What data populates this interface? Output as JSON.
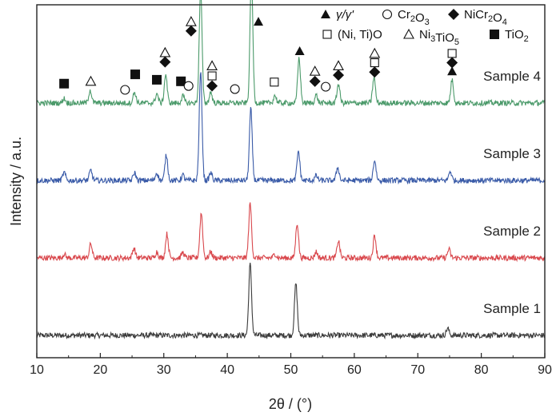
{
  "chart_data": {
    "type": "line",
    "xlabel": "2θ / (°)",
    "ylabel": "Intensity / a.u.",
    "xlim": [
      10,
      90
    ],
    "xticks": [
      "10",
      "20",
      "30",
      "40",
      "50",
      "60",
      "70",
      "80",
      "90"
    ],
    "grid": false,
    "legend": {
      "placement": "top-right",
      "entries": [
        {
          "id": "gamma",
          "marker": "filled-triangle",
          "label": "γ/γ'"
        },
        {
          "id": "cr2o3",
          "marker": "open-circle",
          "label": "Cr2O3"
        },
        {
          "id": "nicr2o4",
          "marker": "filled-diamond",
          "label": "NiCr2O4"
        },
        {
          "id": "nitio",
          "marker": "open-square",
          "label": "(Ni, Ti)O"
        },
        {
          "id": "ni3tio5",
          "marker": "open-triangle",
          "label": "Ni3TiO5"
        },
        {
          "id": "tio2",
          "marker": "filled-square",
          "label": "TiO2"
        }
      ]
    },
    "series": [
      {
        "name": "Sample 1",
        "color": "#3b3b3b",
        "baseline": 0.0,
        "peaks": [
          [
            43.6,
            0.92
          ],
          [
            50.8,
            0.67
          ],
          [
            74.7,
            0.09
          ]
        ]
      },
      {
        "name": "Sample 2",
        "color": "#d9484d",
        "baseline": 1.0,
        "peaks": [
          [
            14.3,
            0.05
          ],
          [
            18.5,
            0.18
          ],
          [
            25.3,
            0.13
          ],
          [
            28.9,
            0.08
          ],
          [
            30.5,
            0.31
          ],
          [
            33.0,
            0.07
          ],
          [
            35.9,
            0.58
          ],
          [
            37.4,
            0.08
          ],
          [
            43.6,
            0.7
          ],
          [
            47.5,
            0.05
          ],
          [
            51.0,
            0.45
          ],
          [
            54.0,
            0.08
          ],
          [
            57.5,
            0.22
          ],
          [
            63.2,
            0.29
          ],
          [
            74.9,
            0.11
          ]
        ]
      },
      {
        "name": "Sample 3",
        "color": "#3a5ba8",
        "baseline": 2.0,
        "peaks": [
          [
            14.3,
            0.1
          ],
          [
            18.5,
            0.13
          ],
          [
            25.4,
            0.1
          ],
          [
            28.9,
            0.1
          ],
          [
            30.4,
            0.33
          ],
          [
            33.0,
            0.07
          ],
          [
            35.8,
            1.4
          ],
          [
            37.4,
            0.1
          ],
          [
            43.7,
            0.92
          ],
          [
            51.2,
            0.38
          ],
          [
            54.0,
            0.06
          ],
          [
            57.4,
            0.17
          ],
          [
            63.2,
            0.26
          ],
          [
            75.1,
            0.12
          ]
        ]
      },
      {
        "name": "Sample 4",
        "color": "#4b9a6a",
        "baseline": 3.0,
        "peaks": [
          [
            14.3,
            0.06
          ],
          [
            18.4,
            0.17
          ],
          [
            25.4,
            0.14
          ],
          [
            28.9,
            0.12
          ],
          [
            30.3,
            0.37
          ],
          [
            33.0,
            0.09
          ],
          [
            35.8,
            1.47
          ],
          [
            37.4,
            0.14
          ],
          [
            43.8,
            1.65
          ],
          [
            47.5,
            0.1
          ],
          [
            51.3,
            0.58
          ],
          [
            54.0,
            0.1
          ],
          [
            57.5,
            0.25
          ],
          [
            63.1,
            0.33
          ],
          [
            75.4,
            0.3
          ]
        ]
      }
    ],
    "annotations": [
      {
        "marker": "filled-square",
        "x": 14.3,
        "y": 3.25
      },
      {
        "marker": "open-triangle",
        "x": 18.5,
        "y": 3.28
      },
      {
        "marker": "open-circle",
        "x": 23.9,
        "y": 3.17
      },
      {
        "marker": "filled-square",
        "x": 25.5,
        "y": 3.37
      },
      {
        "marker": "filled-square",
        "x": 28.9,
        "y": 3.3
      },
      {
        "marker": "filled-square",
        "x": 32.7,
        "y": 3.28
      },
      {
        "marker": "open-circle",
        "x": 33.9,
        "y": 3.22
      },
      {
        "marker": "open-triangle",
        "x": 30.2,
        "y": 3.65
      },
      {
        "marker": "filled-diamond",
        "x": 30.2,
        "y": 3.53
      },
      {
        "marker": "open-triangle",
        "x": 34.3,
        "y": 4.05
      },
      {
        "marker": "filled-diamond",
        "x": 34.3,
        "y": 3.93
      },
      {
        "marker": "open-triangle",
        "x": 37.6,
        "y": 3.48
      },
      {
        "marker": "open-square",
        "x": 37.6,
        "y": 3.35
      },
      {
        "marker": "filled-diamond",
        "x": 37.6,
        "y": 3.22
      },
      {
        "marker": "open-circle",
        "x": 41.2,
        "y": 3.18
      },
      {
        "marker": "filled-triangle",
        "x": 44.9,
        "y": 4.05
      },
      {
        "marker": "open-square",
        "x": 47.4,
        "y": 3.27
      },
      {
        "marker": "filled-triangle",
        "x": 51.4,
        "y": 3.67
      },
      {
        "marker": "open-triangle",
        "x": 53.8,
        "y": 3.41
      },
      {
        "marker": "filled-diamond",
        "x": 53.8,
        "y": 3.28
      },
      {
        "marker": "open-circle",
        "x": 55.5,
        "y": 3.21
      },
      {
        "marker": "open-triangle",
        "x": 57.5,
        "y": 3.48
      },
      {
        "marker": "filled-diamond",
        "x": 57.5,
        "y": 3.36
      },
      {
        "marker": "open-triangle",
        "x": 63.2,
        "y": 3.64
      },
      {
        "marker": "open-square",
        "x": 63.2,
        "y": 3.52
      },
      {
        "marker": "filled-diamond",
        "x": 63.2,
        "y": 3.4
      },
      {
        "marker": "open-square",
        "x": 75.4,
        "y": 3.64
      },
      {
        "marker": "filled-diamond",
        "x": 75.4,
        "y": 3.52
      },
      {
        "marker": "filled-triangle",
        "x": 75.4,
        "y": 3.41
      }
    ]
  }
}
